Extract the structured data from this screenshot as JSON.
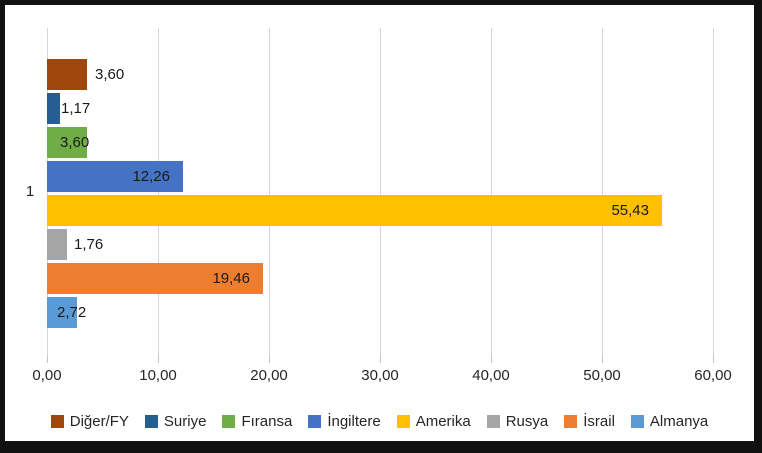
{
  "chart_data": {
    "type": "bar",
    "orientation": "horizontal",
    "title": "",
    "category": "1",
    "series": [
      {
        "name": "Diğer/FY",
        "value": 3.6,
        "label": "3,60",
        "color": "#9E480E",
        "label_mode": "out",
        "label_dx": 8
      },
      {
        "name": "Suriye",
        "value": 1.17,
        "label": "1,17",
        "color": "#255E91",
        "label_mode": "out",
        "label_dx": 1
      },
      {
        "name": "Fıransa",
        "value": 3.6,
        "label": "3,60",
        "color": "#70AD47",
        "label_mode": "out",
        "label_dx": -27
      },
      {
        "name": "İngiltere",
        "value": 12.26,
        "label": "12,26",
        "color": "#4472C4",
        "label_mode": "in",
        "label_dx": -13
      },
      {
        "name": "Amerika",
        "value": 55.43,
        "label": "55,43",
        "color": "#FFC000",
        "label_mode": "in",
        "label_dx": -13
      },
      {
        "name": "Rusya",
        "value": 1.76,
        "label": "1,76",
        "color": "#A5A5A5",
        "label_mode": "out",
        "label_dx": 7
      },
      {
        "name": "İsrail",
        "value": 19.46,
        "label": "19,46",
        "color": "#ED7D31",
        "label_mode": "in",
        "label_dx": -13
      },
      {
        "name": "Almanya",
        "value": 2.72,
        "label": "2,72",
        "color": "#5B9BD5",
        "label_mode": "out",
        "label_dx": -20
      }
    ],
    "xlim": [
      0,
      60
    ],
    "x_tick_values": [
      0,
      10,
      20,
      30,
      40,
      50,
      60
    ],
    "x_tick_labels": [
      "0,00",
      "10,00",
      "20,00",
      "30,00",
      "40,00",
      "50,00",
      "60,00"
    ],
    "grid": true,
    "gridline_color": "#d6d6d6",
    "legend_position": "bottom",
    "frame_border_color": "#111111"
  }
}
